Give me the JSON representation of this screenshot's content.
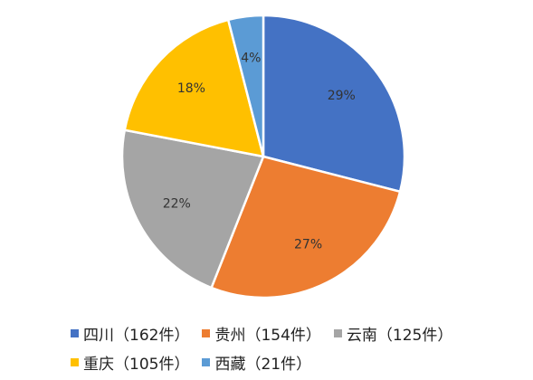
{
  "chart_data": {
    "type": "pie",
    "title": "",
    "slices": [
      {
        "label": "四川（162件）",
        "category": "四川",
        "count": 162,
        "percent_label": "29%",
        "value": 29,
        "color": "#4472C4"
      },
      {
        "label": "贵州（154件）",
        "category": "贵州",
        "count": 154,
        "percent_label": "27%",
        "value": 27,
        "color": "#ED7D31"
      },
      {
        "label": "云南（125件）",
        "category": "云南",
        "count": 125,
        "percent_label": "22%",
        "value": 22,
        "color": "#A5A5A5"
      },
      {
        "label": "重庆（105件）",
        "category": "重庆",
        "count": 105,
        "percent_label": "18%",
        "value": 18,
        "color": "#FFC000"
      },
      {
        "label": "西藏（21件）",
        "category": "西藏",
        "count": 21,
        "percent_label": "4%",
        "value": 4,
        "color": "#5B9BD5"
      }
    ],
    "legend_position": "bottom"
  }
}
